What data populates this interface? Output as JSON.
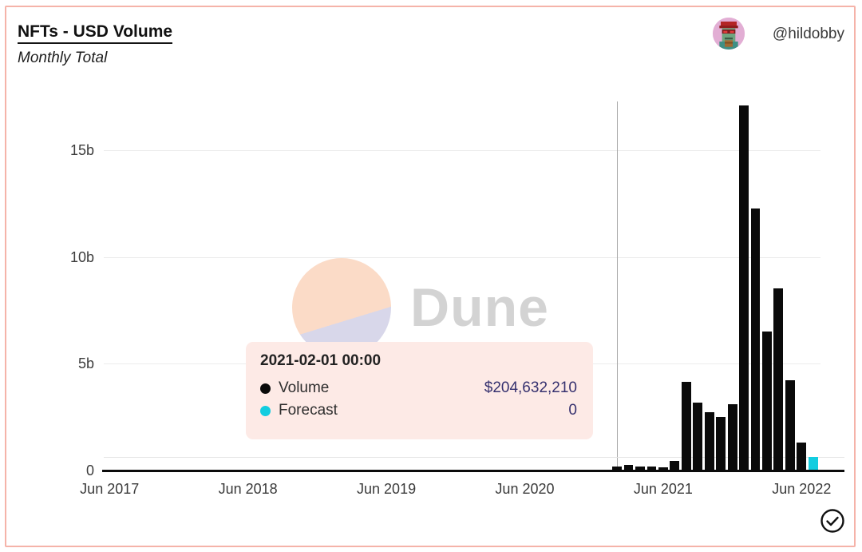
{
  "header": {
    "title": "NFTs - USD Volume",
    "subtitle": "Monthly Total",
    "author": "@hildobby"
  },
  "watermark": {
    "text": "Dune"
  },
  "tooltip": {
    "date": "2021-02-01 00:00",
    "rows": [
      {
        "label": "Volume",
        "value": "$204,632,210",
        "marker_color": "#0a0a0a"
      },
      {
        "label": "Forecast",
        "value": "0",
        "marker_color": "#12cde0"
      }
    ],
    "bg_color": "#fdeae6",
    "value_color": "#36316f"
  },
  "chart_data": {
    "type": "bar",
    "title": "NFTs - USD Volume",
    "subtitle": "Monthly Total",
    "unit": "billions USD",
    "start_month": "2017-06",
    "end_month": "2022-07",
    "ylim": [
      0,
      17.3
    ],
    "grid": true,
    "yticks": [
      {
        "label": "0",
        "value": 0
      },
      {
        "label": "5b",
        "value": 5
      },
      {
        "label": "10b",
        "value": 10
      },
      {
        "label": "15b",
        "value": 15
      }
    ],
    "xticks": [
      {
        "label": "Jun 2017",
        "index": 0
      },
      {
        "label": "Jun 2018",
        "index": 12
      },
      {
        "label": "Jun 2019",
        "index": 24
      },
      {
        "label": "Jun 2020",
        "index": 36
      },
      {
        "label": "Jun 2021",
        "index": 48
      },
      {
        "label": "Jun 2022",
        "index": 60
      }
    ],
    "series": [
      {
        "name": "Volume",
        "color": "#0a0a0a",
        "values": [
          0,
          0,
          0,
          0,
          0,
          0,
          0,
          0,
          0,
          0,
          0,
          0,
          0,
          0,
          0,
          0,
          0,
          0,
          0,
          0,
          0,
          0,
          0,
          0,
          0,
          0,
          0,
          0,
          0,
          0,
          0,
          0,
          0,
          0,
          0,
          0,
          0,
          0,
          0,
          0,
          0,
          0,
          0,
          0,
          0.205,
          0.26,
          0.17,
          0.17,
          0.14,
          0.45,
          4.15,
          3.2,
          2.75,
          2.5,
          3.1,
          17.1,
          12.3,
          6.5,
          8.55,
          4.25,
          1.3,
          0
        ]
      },
      {
        "name": "Forecast",
        "color": "#12cde0",
        "values": [
          0,
          0,
          0,
          0,
          0,
          0,
          0,
          0,
          0,
          0,
          0,
          0,
          0,
          0,
          0,
          0,
          0,
          0,
          0,
          0,
          0,
          0,
          0,
          0,
          0,
          0,
          0,
          0,
          0,
          0,
          0,
          0,
          0,
          0,
          0,
          0,
          0,
          0,
          0,
          0,
          0,
          0,
          0,
          0,
          0,
          0,
          0,
          0,
          0,
          0,
          0,
          0,
          0,
          0,
          0,
          0,
          0,
          0,
          0,
          0,
          0,
          0.65
        ]
      }
    ],
    "hover": {
      "month": "2021-02-01 00:00",
      "month_index": 44
    }
  }
}
